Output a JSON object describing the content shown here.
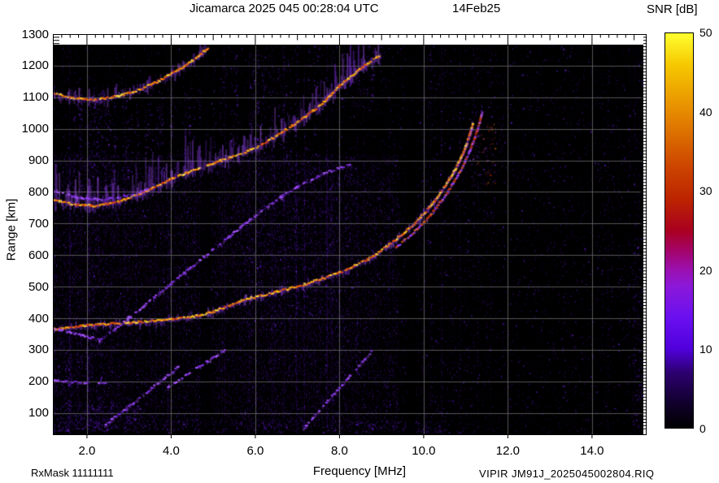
{
  "title": {
    "observatory_time": "Jicamarca 2025 045 00:28:04 UTC",
    "date": "14Feb25"
  },
  "colorbar": {
    "label": "SNR [dB]",
    "min_db": 0,
    "max_db": 50,
    "tick_labels": [
      "0",
      "10",
      "20",
      "30",
      "40",
      "50"
    ],
    "tick_values": [
      0,
      10,
      20,
      30,
      40,
      50
    ],
    "palette_stops": [
      [
        0,
        "#000000"
      ],
      [
        0.06,
        "#10002a"
      ],
      [
        0.14,
        "#2d0070"
      ],
      [
        0.2,
        "#5000dc"
      ],
      [
        0.28,
        "#6a10f0"
      ],
      [
        0.36,
        "#8c18d8"
      ],
      [
        0.4,
        "#9b10b0"
      ],
      [
        0.45,
        "#a40468"
      ],
      [
        0.5,
        "#aa0020"
      ],
      [
        0.58,
        "#bc2400"
      ],
      [
        0.66,
        "#cc4400"
      ],
      [
        0.8,
        "#e68a00"
      ],
      [
        0.92,
        "#f6c800"
      ],
      [
        1,
        "#ffff30"
      ]
    ]
  },
  "axes": {
    "x_label": "Frequency [MHz]",
    "y_label": "Range [km]",
    "x_tick_labels": [
      "2.0",
      "4.0",
      "6.0",
      "8.0",
      "10.0",
      "12.0",
      "14.0"
    ],
    "x_tick_values_mhz": [
      2,
      4,
      6,
      8,
      10,
      12,
      14
    ],
    "y_tick_labels": [
      "100",
      "200",
      "300",
      "400",
      "500",
      "600",
      "700",
      "800",
      "900",
      "1000",
      "1100",
      "1200",
      "1300"
    ],
    "y_tick_values_km": [
      100,
      200,
      300,
      400,
      500,
      600,
      700,
      800,
      900,
      1000,
      1100,
      1200,
      1300
    ],
    "x_range_mhz": [
      1.19,
      15.2
    ],
    "y_range_km": [
      30,
      1300
    ]
  },
  "footer": {
    "rx_mask": "RxMask 11111111",
    "instrument_file": "VIPIR  JM91J_2025045002804.RIQ"
  },
  "chart_data": {
    "type": "heatmap",
    "description": "VIPIR HF ionogram: echo SNR [dB] versus sounding frequency [MHz] and virtual range [km]",
    "x_mhz_range": [
      1.19,
      15.2
    ],
    "y_km_range": [
      30,
      1300
    ],
    "snr_db_range": [
      0,
      50
    ],
    "grid": {
      "x_step_mhz": 2,
      "y_step_km": 100,
      "color": "#6a6a6a"
    },
    "echo_traces": [
      {
        "name": "F-region 1-hop O-mode",
        "core": "hot",
        "intensity": 1.0,
        "halo_up_km": 20,
        "halo_down_km": 20,
        "points_mhz_km": [
          [
            1.2,
            365
          ],
          [
            1.6,
            370
          ],
          [
            2.0,
            378
          ],
          [
            2.6,
            383
          ],
          [
            3.2,
            388
          ],
          [
            3.8,
            394
          ],
          [
            4.4,
            402
          ],
          [
            5.0,
            420
          ],
          [
            5.7,
            457
          ],
          [
            6.4,
            480
          ],
          [
            7.0,
            500
          ],
          [
            7.6,
            525
          ],
          [
            8.2,
            555
          ],
          [
            8.8,
            595
          ],
          [
            9.3,
            645
          ],
          [
            9.8,
            700
          ],
          [
            10.2,
            760
          ],
          [
            10.5,
            815
          ],
          [
            10.75,
            870
          ],
          [
            10.95,
            925
          ],
          [
            11.08,
            975
          ],
          [
            11.18,
            1020
          ]
        ]
      },
      {
        "name": "F-region 1-hop X-mode",
        "core": "warm",
        "intensity": 0.45,
        "halo_up_km": 10,
        "halo_down_km": 10,
        "points_mhz_km": [
          [
            9.35,
            625
          ],
          [
            9.75,
            670
          ],
          [
            10.15,
            725
          ],
          [
            10.55,
            795
          ],
          [
            10.85,
            860
          ],
          [
            11.05,
            915
          ],
          [
            11.2,
            965
          ],
          [
            11.32,
            1015
          ],
          [
            11.4,
            1055
          ]
        ]
      },
      {
        "name": "F-region 2-hop",
        "core": "hot",
        "intensity": 0.9,
        "halo_up_km": 130,
        "halo_down_km": 35,
        "points_mhz_km": [
          [
            1.2,
            776
          ],
          [
            1.7,
            760
          ],
          [
            2.2,
            756
          ],
          [
            2.8,
            770
          ],
          [
            3.4,
            800
          ],
          [
            4.0,
            840
          ],
          [
            4.6,
            872
          ],
          [
            5.2,
            900
          ],
          [
            5.7,
            922
          ],
          [
            6.1,
            945
          ],
          [
            6.6,
            985
          ],
          [
            7.1,
            1030
          ],
          [
            7.6,
            1080
          ],
          [
            8.0,
            1135
          ],
          [
            8.5,
            1190
          ],
          [
            9.0,
            1235
          ]
        ]
      },
      {
        "name": "F-region 2-hop X-mode",
        "core": "violet",
        "intensity": 0.35,
        "halo_up_km": 15,
        "halo_down_km": 15,
        "points_mhz_km": [
          [
            1.2,
            805
          ],
          [
            1.8,
            782
          ],
          [
            2.4,
            775
          ],
          [
            3.0,
            790
          ],
          [
            3.5,
            810
          ]
        ]
      },
      {
        "name": "F-region 3-hop",
        "core": "hot",
        "intensity": 0.92,
        "halo_up_km": 45,
        "halo_down_km": 28,
        "points_mhz_km": [
          [
            1.2,
            1113
          ],
          [
            1.7,
            1096
          ],
          [
            2.2,
            1092
          ],
          [
            2.7,
            1102
          ],
          [
            3.2,
            1122
          ],
          [
            3.7,
            1150
          ],
          [
            4.2,
            1188
          ],
          [
            4.6,
            1224
          ],
          [
            4.9,
            1258
          ]
        ]
      },
      {
        "name": "oblique echo ascending",
        "core": "violet",
        "intensity": 0.3,
        "halo_up_km": 12,
        "halo_down_km": 12,
        "points_mhz_km": [
          [
            2.3,
            330
          ],
          [
            2.9,
            390
          ],
          [
            3.5,
            455
          ],
          [
            4.1,
            520
          ],
          [
            4.7,
            585
          ],
          [
            5.3,
            650
          ],
          [
            5.9,
            715
          ],
          [
            6.5,
            775
          ],
          [
            7.1,
            825
          ],
          [
            7.7,
            862
          ],
          [
            8.3,
            890
          ]
        ]
      },
      {
        "name": "oblique echo descending branch",
        "core": "violet",
        "intensity": 0.3,
        "halo_up_km": 10,
        "halo_down_km": 10,
        "points_mhz_km": [
          [
            1.25,
            368
          ],
          [
            1.8,
            348
          ],
          [
            2.3,
            332
          ]
        ]
      },
      {
        "name": "low slant echo A",
        "core": "violet",
        "intensity": 0.34,
        "halo_up_km": 10,
        "halo_down_km": 10,
        "points_mhz_km": [
          [
            2.4,
            60
          ],
          [
            3.0,
            120
          ],
          [
            3.6,
            185
          ],
          [
            4.2,
            248
          ]
        ]
      },
      {
        "name": "low slant echo B",
        "core": "violet",
        "intensity": 0.18,
        "halo_up_km": 8,
        "halo_down_km": 8,
        "points_mhz_km": [
          [
            3.9,
            180
          ],
          [
            4.6,
            240
          ],
          [
            5.3,
            300
          ]
        ]
      },
      {
        "name": "low slant echo C",
        "core": "violet",
        "intensity": 0.2,
        "halo_up_km": 8,
        "halo_down_km": 8,
        "points_mhz_km": [
          [
            7.15,
            50
          ],
          [
            7.7,
            135
          ],
          [
            8.3,
            225
          ],
          [
            8.8,
            300
          ]
        ]
      },
      {
        "name": "low flat echo left",
        "core": "violet",
        "intensity": 0.22,
        "halo_up_km": 8,
        "halo_down_km": 8,
        "points_mhz_km": [
          [
            1.2,
            205
          ],
          [
            1.8,
            196
          ],
          [
            2.5,
            192
          ]
        ]
      }
    ],
    "diffuse_clouds": [
      {
        "f_mhz": [
          1.5,
          4.7
        ],
        "r_km": [
          800,
          1130
        ],
        "density": 0.5,
        "palette": "violet",
        "striped": true
      },
      {
        "f_mhz": [
          4.7,
          6.9
        ],
        "r_km": [
          900,
          1240
        ],
        "density": 0.35,
        "palette": "violet",
        "striped": true
      },
      {
        "f_mhz": [
          6.9,
          9.1
        ],
        "r_km": [
          1060,
          1265
        ],
        "density": 0.3,
        "palette": "violet",
        "striped": true
      },
      {
        "f_mhz": [
          5.5,
          8.3
        ],
        "r_km": [
          380,
          900
        ],
        "density": 0.22,
        "palette": "violet",
        "striped": true
      },
      {
        "f_mhz": [
          6.3,
          7.7
        ],
        "r_km": [
          100,
          1265
        ],
        "density": 0.1,
        "palette": "violet",
        "striped": true
      },
      {
        "f_mhz": [
          11.12,
          11.7
        ],
        "r_km": [
          820,
          1020
        ],
        "density": 0.5,
        "palette": "warm",
        "striped": false
      },
      {
        "f_mhz": [
          1.19,
          2.6
        ],
        "r_km": [
          40,
          340
        ],
        "density": 0.45,
        "palette": "violet",
        "striped": true
      },
      {
        "f_mhz": [
          1.19,
          10.6
        ],
        "r_km": [
          40,
          78
        ],
        "density": 1.1,
        "palette": "violet",
        "striped": false
      },
      {
        "f_mhz": [
          1.19,
          3.4
        ],
        "r_km": [
          40,
          125
        ],
        "density": 0.8,
        "palette": "violet",
        "striped": false
      },
      {
        "f_mhz": [
          2.0,
          5.5
        ],
        "r_km": [
          430,
          800
        ],
        "density": 0.12,
        "palette": "violet",
        "striped": true
      },
      {
        "f_mhz": [
          8.3,
          9.5
        ],
        "r_km": [
          400,
          1265
        ],
        "density": 0.08,
        "palette": "violet",
        "striped": true
      },
      {
        "f_mhz": [
          12.95,
          13.35
        ],
        "r_km": [
          150,
          1265
        ],
        "density": 0.1,
        "palette": "violet",
        "striped": true
      },
      {
        "f_mhz": [
          14.15,
          14.5
        ],
        "r_km": [
          250,
          1100
        ],
        "density": 0.09,
        "palette": "violet",
        "striped": true
      },
      {
        "f_mhz": [
          14.95,
          15.2
        ],
        "r_km": [
          60,
          660
        ],
        "density": 0.5,
        "palette": "violet",
        "striped": false
      }
    ],
    "rfi_dark_bands_mhz": [
      [
        4.7,
        4.95
      ],
      [
        9.58,
        9.82
      ]
    ],
    "noise": {
      "dense_below_mhz": 9.4,
      "base_density_left": 0.55,
      "base_density_right": 0.13,
      "streak_column_fraction": 0.12
    }
  }
}
